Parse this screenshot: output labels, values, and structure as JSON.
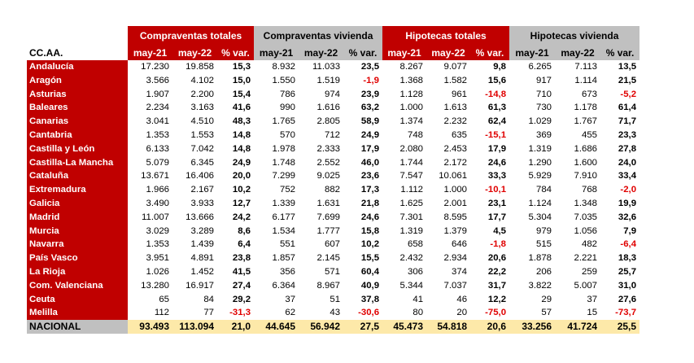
{
  "header": {
    "corner_label": "CC.AA.",
    "groups": [
      {
        "label": "Compraventas totales",
        "color": "#c00000"
      },
      {
        "label": "Compraventas vivienda",
        "color": "#c0c0c0"
      },
      {
        "label": "Hipotecas totales",
        "color": "#c00000"
      },
      {
        "label": "Hipotecas vivienda",
        "color": "#c0c0c0"
      }
    ],
    "subcols": [
      "may-21",
      "may-22",
      "% var."
    ]
  },
  "rows": [
    {
      "name": "Andalucía",
      "v": [
        "17.230",
        "19.858",
        "15,3",
        "8.932",
        "11.033",
        "23,5",
        "8.267",
        "9.077",
        "9,8",
        "6.265",
        "7.113",
        "13,5"
      ]
    },
    {
      "name": "Aragón",
      "v": [
        "3.566",
        "4.102",
        "15,0",
        "1.550",
        "1.519",
        "-1,9",
        "1.368",
        "1.582",
        "15,6",
        "917",
        "1.114",
        "21,5"
      ]
    },
    {
      "name": "Asturias",
      "v": [
        "1.907",
        "2.200",
        "15,4",
        "786",
        "974",
        "23,9",
        "1.128",
        "961",
        "-14,8",
        "710",
        "673",
        "-5,2"
      ]
    },
    {
      "name": "Baleares",
      "v": [
        "2.234",
        "3.163",
        "41,6",
        "990",
        "1.616",
        "63,2",
        "1.000",
        "1.613",
        "61,3",
        "730",
        "1.178",
        "61,4"
      ]
    },
    {
      "name": "Canarias",
      "v": [
        "3.041",
        "4.510",
        "48,3",
        "1.765",
        "2.805",
        "58,9",
        "1.374",
        "2.232",
        "62,4",
        "1.029",
        "1.767",
        "71,7"
      ]
    },
    {
      "name": "Cantabria",
      "v": [
        "1.353",
        "1.553",
        "14,8",
        "570",
        "712",
        "24,9",
        "748",
        "635",
        "-15,1",
        "369",
        "455",
        "23,3"
      ]
    },
    {
      "name": "Castilla y León",
      "v": [
        "6.133",
        "7.042",
        "14,8",
        "1.978",
        "2.333",
        "17,9",
        "2.080",
        "2.453",
        "17,9",
        "1.319",
        "1.686",
        "27,8"
      ]
    },
    {
      "name": "Castilla-La Mancha",
      "v": [
        "5.079",
        "6.345",
        "24,9",
        "1.748",
        "2.552",
        "46,0",
        "1.744",
        "2.172",
        "24,6",
        "1.290",
        "1.600",
        "24,0"
      ]
    },
    {
      "name": "Cataluña",
      "v": [
        "13.671",
        "16.406",
        "20,0",
        "7.299",
        "9.025",
        "23,6",
        "7.547",
        "10.061",
        "33,3",
        "5.929",
        "7.910",
        "33,4"
      ]
    },
    {
      "name": "Extremadura",
      "v": [
        "1.966",
        "2.167",
        "10,2",
        "752",
        "882",
        "17,3",
        "1.112",
        "1.000",
        "-10,1",
        "784",
        "768",
        "-2,0"
      ]
    },
    {
      "name": "Galicia",
      "v": [
        "3.490",
        "3.933",
        "12,7",
        "1.339",
        "1.631",
        "21,8",
        "1.625",
        "2.001",
        "23,1",
        "1.124",
        "1.348",
        "19,9"
      ]
    },
    {
      "name": "Madrid",
      "v": [
        "11.007",
        "13.666",
        "24,2",
        "6.177",
        "7.699",
        "24,6",
        "7.301",
        "8.595",
        "17,7",
        "5.304",
        "7.035",
        "32,6"
      ]
    },
    {
      "name": "Murcia",
      "v": [
        "3.029",
        "3.289",
        "8,6",
        "1.534",
        "1.777",
        "15,8",
        "1.319",
        "1.379",
        "4,5",
        "979",
        "1.056",
        "7,9"
      ]
    },
    {
      "name": "Navarra",
      "v": [
        "1.353",
        "1.439",
        "6,4",
        "551",
        "607",
        "10,2",
        "658",
        "646",
        "-1,8",
        "515",
        "482",
        "-6,4"
      ]
    },
    {
      "name": "País Vasco",
      "v": [
        "3.951",
        "4.891",
        "23,8",
        "1.857",
        "2.145",
        "15,5",
        "2.432",
        "2.934",
        "20,6",
        "1.878",
        "2.221",
        "18,3"
      ]
    },
    {
      "name": "La Rioja",
      "v": [
        "1.026",
        "1.452",
        "41,5",
        "356",
        "571",
        "60,4",
        "306",
        "374",
        "22,2",
        "206",
        "259",
        "25,7"
      ]
    },
    {
      "name": "Com. Valenciana",
      "v": [
        "13.280",
        "16.917",
        "27,4",
        "6.364",
        "8.967",
        "40,9",
        "5.344",
        "7.037",
        "31,7",
        "3.822",
        "5.007",
        "31,0"
      ]
    },
    {
      "name": "Ceuta",
      "v": [
        "65",
        "84",
        "29,2",
        "37",
        "51",
        "37,8",
        "41",
        "46",
        "12,2",
        "29",
        "37",
        "27,6"
      ]
    },
    {
      "name": "Melilla",
      "v": [
        "112",
        "77",
        "-31,3",
        "62",
        "43",
        "-30,6",
        "80",
        "20",
        "-75,0",
        "57",
        "15",
        "-73,7"
      ]
    }
  ],
  "total": {
    "name": "NACIONAL",
    "v": [
      "93.493",
      "113.094",
      "21,0",
      "44.645",
      "56.942",
      "27,5",
      "45.473",
      "54.818",
      "20,6",
      "33.256",
      "41.724",
      "25,5"
    ]
  },
  "colors": {
    "red": "#c00000",
    "gray": "#c0c0c0",
    "total_bg": "#fde9a9",
    "negative": "#e00000"
  }
}
